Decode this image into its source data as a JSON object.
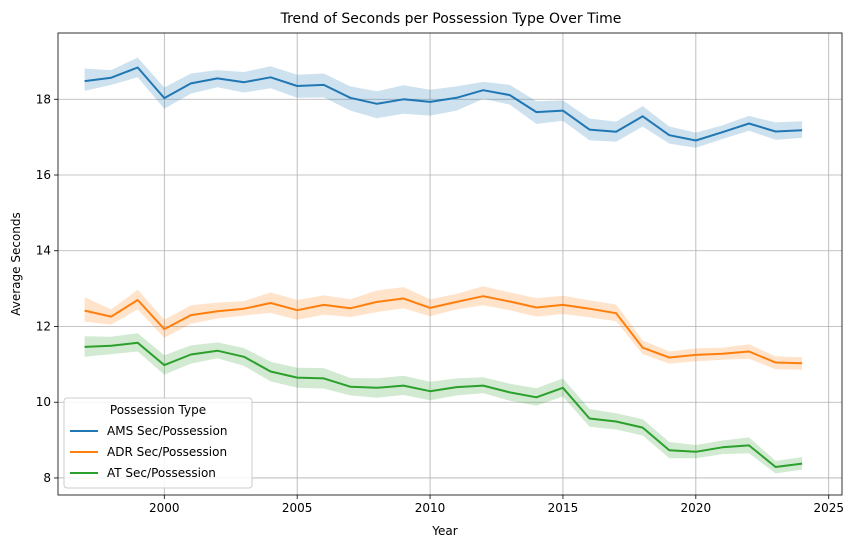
{
  "chart_data": {
    "type": "line",
    "title": "Trend of Seconds per Possession Type Over Time",
    "xlabel": "Year",
    "ylabel": "Average Seconds",
    "xlim": [
      1996,
      2025.5
    ],
    "ylim": [
      7.55,
      19.75
    ],
    "x_ticks": [
      2000,
      2005,
      2010,
      2015,
      2020,
      2025
    ],
    "y_ticks": [
      8,
      10,
      12,
      14,
      16,
      18
    ],
    "grid": true,
    "legend": {
      "title": "Possession Type",
      "placement": "lower-left"
    },
    "x": [
      1997,
      1998,
      1999,
      2000,
      2001,
      2002,
      2003,
      2004,
      2005,
      2006,
      2007,
      2008,
      2009,
      2010,
      2011,
      2012,
      2013,
      2014,
      2015,
      2016,
      2017,
      2018,
      2019,
      2020,
      2021,
      2022,
      2023,
      2024
    ],
    "series": [
      {
        "name": "AMS Sec/Possession",
        "color": "#1f77b4",
        "values": [
          18.48,
          18.57,
          18.84,
          18.03,
          18.42,
          18.55,
          18.45,
          18.58,
          18.35,
          18.38,
          18.04,
          17.88,
          18.0,
          17.93,
          18.04,
          18.24,
          18.11,
          17.66,
          17.7,
          17.2,
          17.14,
          17.55,
          17.05,
          16.91,
          17.13,
          17.36,
          17.15,
          17.18
        ],
        "ci_low": [
          18.22,
          18.38,
          18.58,
          17.75,
          18.15,
          18.32,
          18.18,
          18.29,
          18.04,
          18.05,
          17.7,
          17.5,
          17.62,
          17.57,
          17.7,
          18.01,
          17.86,
          17.35,
          17.43,
          16.92,
          16.88,
          17.28,
          16.83,
          16.72,
          16.95,
          17.17,
          16.93,
          16.98
        ],
        "ci_high": [
          18.81,
          18.77,
          19.1,
          18.31,
          18.68,
          18.77,
          18.72,
          18.87,
          18.65,
          18.68,
          18.34,
          18.21,
          18.37,
          18.25,
          18.34,
          18.46,
          18.38,
          17.95,
          17.97,
          17.49,
          17.41,
          17.82,
          17.28,
          17.12,
          17.31,
          17.56,
          17.39,
          17.42
        ]
      },
      {
        "name": "ADR Sec/Possession",
        "color": "#ff7f0e",
        "values": [
          12.42,
          12.26,
          12.7,
          11.93,
          12.3,
          12.4,
          12.47,
          12.62,
          12.43,
          12.57,
          12.48,
          12.65,
          12.74,
          12.49,
          12.65,
          12.8,
          12.66,
          12.5,
          12.57,
          12.47,
          12.35,
          11.44,
          11.18,
          11.25,
          11.28,
          11.34,
          11.05,
          11.03
        ],
        "ci_low": [
          12.13,
          12.05,
          12.45,
          11.7,
          12.07,
          12.21,
          12.29,
          12.36,
          12.18,
          12.31,
          12.25,
          12.38,
          12.48,
          12.27,
          12.45,
          12.56,
          12.43,
          12.26,
          12.33,
          12.24,
          12.14,
          11.27,
          11.02,
          11.08,
          11.12,
          11.15,
          10.87,
          10.86
        ],
        "ci_high": [
          12.77,
          12.45,
          12.97,
          12.18,
          12.56,
          12.63,
          12.67,
          12.9,
          12.7,
          12.82,
          12.72,
          12.95,
          13.04,
          12.72,
          12.86,
          13.06,
          12.9,
          12.75,
          12.81,
          12.69,
          12.58,
          11.63,
          11.34,
          11.42,
          11.44,
          11.53,
          11.21,
          11.19
        ]
      },
      {
        "name": "AT Sec/Possession",
        "color": "#2ca02c",
        "values": [
          11.46,
          11.49,
          11.57,
          10.98,
          11.26,
          11.36,
          11.2,
          10.81,
          10.65,
          10.63,
          10.41,
          10.38,
          10.44,
          10.29,
          10.4,
          10.44,
          10.26,
          10.13,
          10.38,
          9.57,
          9.49,
          9.33,
          8.73,
          8.69,
          8.81,
          8.86,
          8.29,
          8.38
        ],
        "ci_low": [
          11.2,
          11.27,
          11.34,
          10.73,
          11.02,
          11.16,
          10.96,
          10.55,
          10.38,
          10.36,
          10.18,
          10.12,
          10.19,
          10.05,
          10.18,
          10.24,
          10.04,
          9.91,
          10.15,
          9.35,
          9.28,
          9.12,
          8.52,
          8.52,
          8.63,
          8.65,
          8.12,
          8.22
        ],
        "ci_high": [
          11.74,
          11.73,
          11.82,
          11.24,
          11.5,
          11.58,
          11.43,
          11.07,
          10.91,
          10.9,
          10.64,
          10.63,
          10.7,
          10.54,
          10.63,
          10.66,
          10.49,
          10.37,
          10.63,
          9.82,
          9.71,
          9.55,
          8.95,
          8.87,
          8.99,
          9.07,
          8.45,
          8.55
        ]
      }
    ]
  }
}
